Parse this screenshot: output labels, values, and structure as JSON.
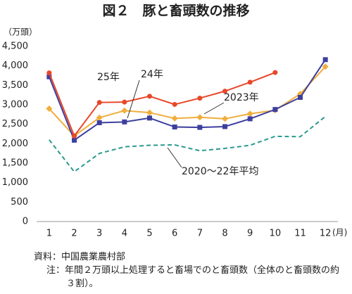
{
  "chart_data": {
    "type": "line",
    "title": "図２　豚と畜頭数の推移",
    "y_unit": "（万頭）",
    "x_unit": "(月)",
    "categories": [
      "1",
      "2",
      "3",
      "4",
      "5",
      "6",
      "7",
      "8",
      "9",
      "10",
      "11",
      "12"
    ],
    "ylim": [
      0,
      4500
    ],
    "yticks": [
      0,
      {
        "value": 500,
        "label": "500"
      },
      {
        "value": 1000,
        "label": "1,000"
      },
      {
        "value": 1500,
        "label": "1,500"
      },
      {
        "value": 2000,
        "label": "2,000"
      },
      {
        "value": 2500,
        "label": "2,500"
      },
      {
        "value": 3000,
        "label": "3,000"
      },
      {
        "value": 3500,
        "label": "3,500"
      },
      {
        "value": 4000,
        "label": "4,000"
      },
      {
        "value": 4500,
        "label": "4,500"
      }
    ],
    "grid": false,
    "series": [
      {
        "name": "25年",
        "color": "#e8472a",
        "marker": "circle",
        "values": [
          3820,
          2200,
          3060,
          3070,
          3220,
          3010,
          3170,
          3350,
          3580,
          3830,
          null,
          null
        ]
      },
      {
        "name": "24年",
        "color": "#3d3f9e",
        "marker": "square",
        "values": [
          3720,
          2090,
          2540,
          2560,
          2660,
          2430,
          2420,
          2440,
          2640,
          2880,
          3190,
          4160
        ]
      },
      {
        "name": "2023年",
        "color": "#f0ae3c",
        "marker": "diamond",
        "values": [
          2900,
          2200,
          2670,
          2850,
          2800,
          2650,
          2680,
          2640,
          2770,
          2860,
          3280,
          3980
        ]
      },
      {
        "name": "2020～22年平均",
        "color": "#2a9a8f",
        "marker": "dashed",
        "values": [
          2100,
          1280,
          1750,
          1920,
          1960,
          1970,
          1820,
          1880,
          1960,
          2190,
          2180,
          2700
        ]
      }
    ],
    "source": "資料：中国農業農村部",
    "note": "注：年間２万頭以上処理すると畜場でのと畜頭数（全体のと畜頭数の約３割）。"
  }
}
